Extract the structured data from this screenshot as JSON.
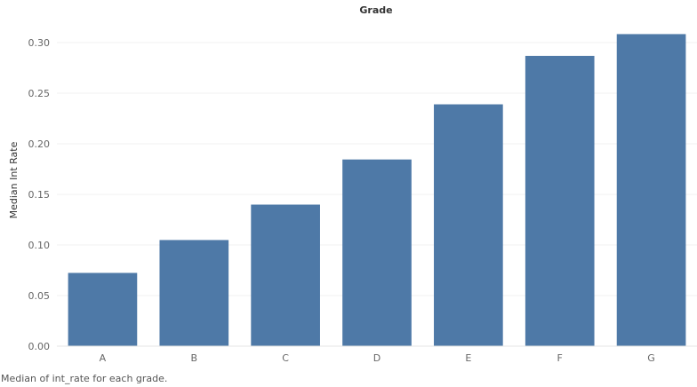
{
  "chart_data": {
    "type": "bar",
    "title": "Grade",
    "xlabel": "",
    "ylabel": "Median Int Rate",
    "categories": [
      "A",
      "B",
      "C",
      "D",
      "E",
      "F",
      "G"
    ],
    "values": [
      0.0724,
      0.1049,
      0.1399,
      0.1845,
      0.239,
      0.2869,
      0.3084
    ],
    "ylim": [
      0,
      0.32
    ],
    "yticks": [
      "0.00",
      "0.05",
      "0.10",
      "0.15",
      "0.20",
      "0.25",
      "0.30"
    ],
    "ytick_values": [
      0,
      0.05,
      0.1,
      0.15,
      0.2,
      0.25,
      0.3
    ],
    "grid": true,
    "bar_color": "#4e79a7"
  },
  "caption": "Median of int_rate for each grade."
}
